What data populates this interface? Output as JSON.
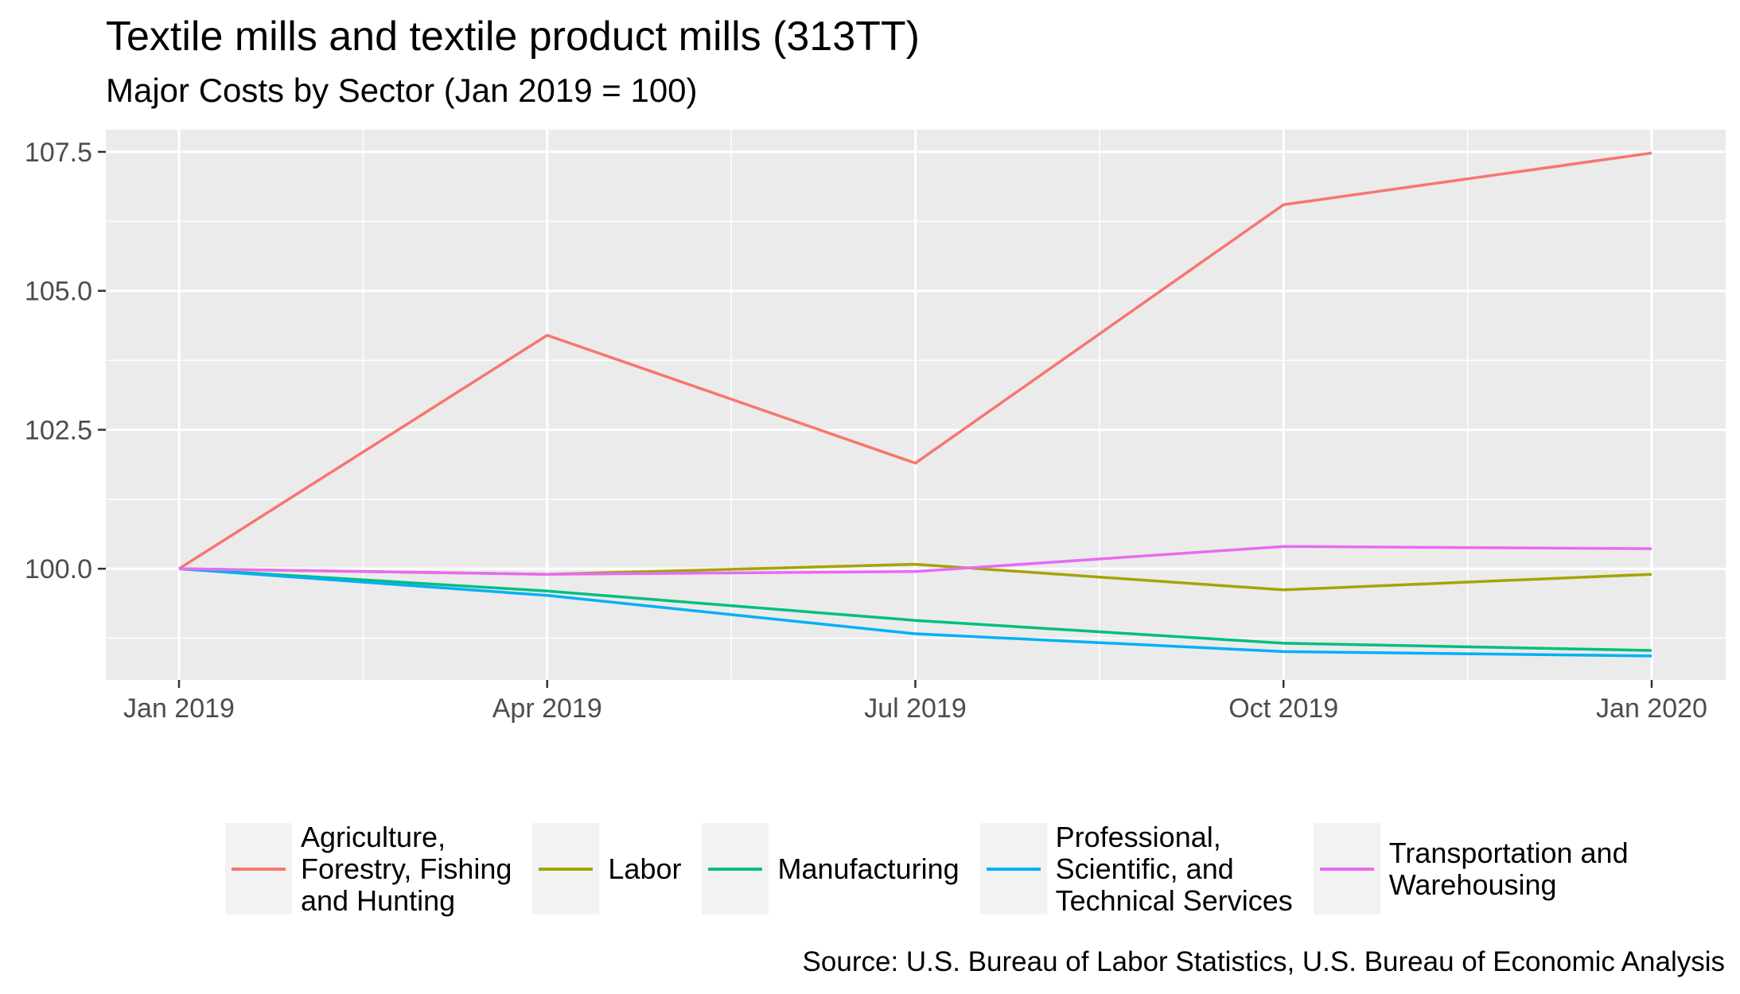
{
  "chart_data": {
    "type": "line",
    "title": "Textile mills and textile product mills (313TT)",
    "subtitle": "Major Costs by Sector (Jan 2019 = 100)",
    "xlabel": "",
    "ylabel": "",
    "x": [
      "2019-01",
      "2019-04",
      "2019-07",
      "2019-10",
      "2020-01"
    ],
    "x_tick_labels": [
      "Jan 2019",
      "Apr 2019",
      "Jul 2019",
      "Oct 2019",
      "Jan 2020"
    ],
    "y_ticks": [
      100.0,
      102.5,
      105.0,
      107.5
    ],
    "y_tick_labels": [
      "100.0",
      "102.5",
      "105.0",
      "107.5"
    ],
    "ylim": [
      98.0,
      107.9
    ],
    "grid": true,
    "legend_position": "bottom",
    "series": [
      {
        "name": "Agriculture,\nForestry, Fishing\nand Hunting",
        "color": "#F8766D",
        "values": [
          100.0,
          104.2,
          101.9,
          106.55,
          107.48
        ]
      },
      {
        "name": "Labor",
        "color": "#A3A500",
        "values": [
          100.0,
          99.9,
          100.08,
          99.62,
          99.9
        ]
      },
      {
        "name": "Manufacturing",
        "color": "#00BF7D",
        "values": [
          100.0,
          99.6,
          99.07,
          98.66,
          98.53
        ]
      },
      {
        "name": "Professional,\nScientific, and\nTechnical Services",
        "color": "#00B0F6",
        "values": [
          100.0,
          99.52,
          98.83,
          98.51,
          98.43
        ]
      },
      {
        "name": "Transportation and\nWarehousing",
        "color": "#E76BF3",
        "values": [
          100.0,
          99.9,
          99.95,
          100.4,
          100.36
        ]
      }
    ],
    "caption": "Source: U.S. Bureau of Labor Statistics, U.S. Bureau of Economic Analysis"
  }
}
